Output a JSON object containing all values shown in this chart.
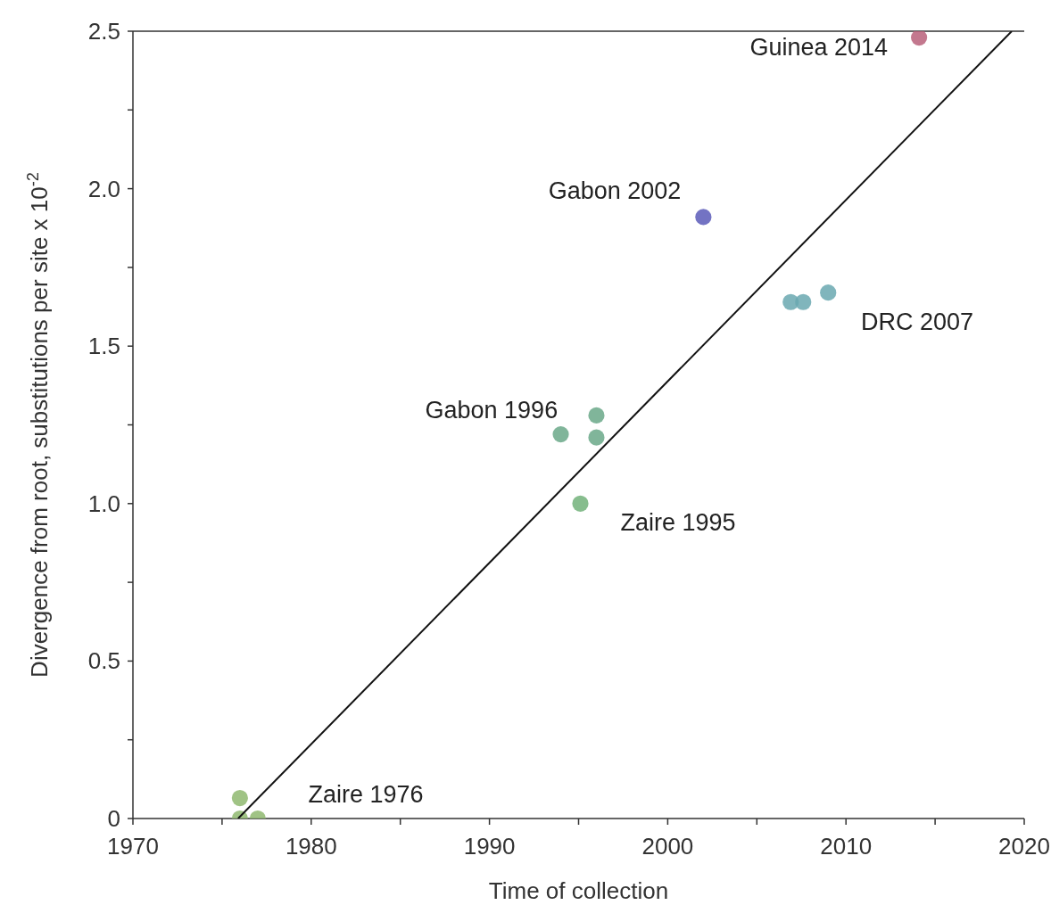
{
  "chart_data": {
    "type": "scatter",
    "xlabel": "Time of collection",
    "ylabel": "Divergence from root, substitutions per site x 10$^{-2}$",
    "xlim": [
      1970,
      2020
    ],
    "ylim": [
      0,
      2.5
    ],
    "xticks": [
      1970,
      {
        "value": 1975,
        "label": null
      },
      1980,
      {
        "value": 1985,
        "label": null
      },
      1990,
      {
        "value": 1995,
        "label": null
      },
      2000,
      {
        "value": 2005,
        "label": null
      },
      2010,
      {
        "value": 2015,
        "label": null
      },
      2020
    ],
    "yticks": [
      0,
      {
        "value": 0.25,
        "label": null
      },
      0.5,
      {
        "value": 0.75,
        "label": null
      },
      {
        "value": 1,
        "label": "1.0"
      },
      {
        "value": 1.25,
        "label": null
      },
      1.5,
      {
        "value": 1.75,
        "label": null
      },
      {
        "value": 2,
        "label": "2.0"
      },
      {
        "value": 2.25,
        "label": null
      },
      2.5
    ],
    "marker": "circle",
    "grid": false,
    "series": [
      {
        "name": "Zaire 1976",
        "color": "#8fb870",
        "x": [
          1976.0,
          1976.0,
          1977.0
        ],
        "values": [
          0.065,
          0,
          0
        ]
      },
      {
        "name": "Zaire 1995",
        "color": "#72b27a",
        "x": [
          1995.1
        ],
        "values": [
          1.0
        ]
      },
      {
        "name": "Gabon 1996",
        "color": "#6aa888",
        "x": [
          1994.0,
          1996.0,
          1996.0
        ],
        "values": [
          1.22,
          1.28,
          1.21
        ]
      },
      {
        "name": "Gabon 2002",
        "color": "#5a5ab8",
        "x": [
          2002.0
        ],
        "values": [
          1.91
        ]
      },
      {
        "name": "DRC 2007",
        "color": "#6aa8b0",
        "x": [
          2006.9,
          2007.6,
          2009.0
        ],
        "values": [
          1.64,
          1.64,
          1.67
        ]
      },
      {
        "name": "Guinea 2014",
        "color": "#b8607a",
        "x": [
          2014.1
        ],
        "values": [
          2.48
        ]
      },
      {
        "type": "line",
        "marker": "none",
        "color": "#111111",
        "x": [
          1975.9,
          2019.3
        ],
        "values": [
          0,
          2.5
        ]
      }
    ]
  }
}
